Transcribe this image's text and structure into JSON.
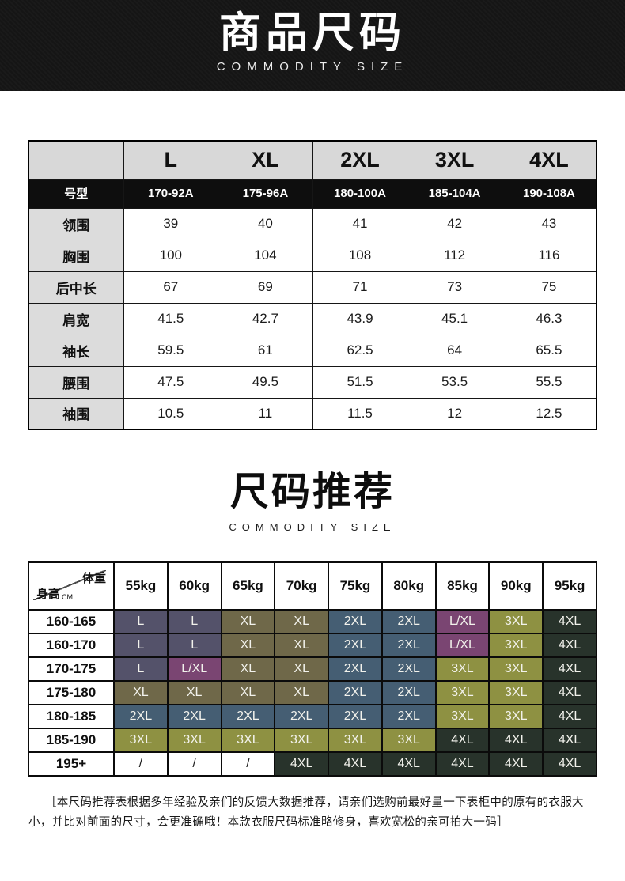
{
  "banner": {
    "title": "商品尺码",
    "subtitle": "COMMODITY SIZE",
    "bg_color": "#151515"
  },
  "spec_table": {
    "size_headers": [
      "L",
      "XL",
      "2XL",
      "3XL",
      "4XL"
    ],
    "model_row": {
      "label": "号型",
      "values": [
        "170-92A",
        "175-96A",
        "180-100A",
        "185-104A",
        "190-108A"
      ]
    },
    "rows": [
      {
        "label": "领围",
        "values": [
          "39",
          "40",
          "41",
          "42",
          "43"
        ]
      },
      {
        "label": "胸围",
        "values": [
          "100",
          "104",
          "108",
          "112",
          "116"
        ]
      },
      {
        "label": "后中长",
        "values": [
          "67",
          "69",
          "71",
          "73",
          "75"
        ]
      },
      {
        "label": "肩宽",
        "values": [
          "41.5",
          "42.7",
          "43.9",
          "45.1",
          "46.3"
        ]
      },
      {
        "label": "袖长",
        "values": [
          "59.5",
          "61",
          "62.5",
          "64",
          "65.5"
        ]
      },
      {
        "label": "腰围",
        "values": [
          "47.5",
          "49.5",
          "51.5",
          "53.5",
          "55.5"
        ]
      },
      {
        "label": "袖围",
        "values": [
          "10.5",
          "11",
          "11.5",
          "12",
          "12.5"
        ]
      }
    ],
    "header_bg": "#d8d8d8",
    "model_row_bg": "#0e0e0e",
    "label_col_bg": "#dcdcdc"
  },
  "recommend": {
    "title": "尺码推荐",
    "subtitle": "COMMODITY SIZE",
    "corner": {
      "top_label": "体重",
      "bottom_label": "身高",
      "unit": "CM"
    },
    "weight_headers": [
      "55kg",
      "60kg",
      "65kg",
      "70kg",
      "75kg",
      "80kg",
      "85kg",
      "90kg",
      "95kg"
    ],
    "rows": [
      {
        "height": "160-165",
        "sizes": [
          "L",
          "L",
          "XL",
          "XL",
          "2XL",
          "2XL",
          "L/XL",
          "3XL",
          "4XL"
        ]
      },
      {
        "height": "160-170",
        "sizes": [
          "L",
          "L",
          "XL",
          "XL",
          "2XL",
          "2XL",
          "L/XL",
          "3XL",
          "4XL"
        ]
      },
      {
        "height": "170-175",
        "sizes": [
          "L",
          "L/XL",
          "XL",
          "XL",
          "2XL",
          "2XL",
          "3XL",
          "3XL",
          "4XL"
        ]
      },
      {
        "height": "175-180",
        "sizes": [
          "XL",
          "XL",
          "XL",
          "XL",
          "2XL",
          "2XL",
          "3XL",
          "3XL",
          "4XL"
        ]
      },
      {
        "height": "180-185",
        "sizes": [
          "2XL",
          "2XL",
          "2XL",
          "2XL",
          "2XL",
          "2XL",
          "3XL",
          "3XL",
          "4XL"
        ]
      },
      {
        "height": "185-190",
        "sizes": [
          "3XL",
          "3XL",
          "3XL",
          "3XL",
          "3XL",
          "3XL",
          "4XL",
          "4XL",
          "4XL"
        ]
      },
      {
        "height": "195+",
        "sizes": [
          "/",
          "/",
          "/",
          "4XL",
          "4XL",
          "4XL",
          "4XL",
          "4XL",
          "4XL"
        ]
      }
    ],
    "size_colors": {
      "L": "#54526a",
      "L/XL": "#7a4572",
      "XL": "#6f6849",
      "2XL": "#455e73",
      "3XL": "#8e9142",
      "4XL": "#28332b",
      "/": "#ffffff"
    },
    "cell_text_color": "#f2f2ec",
    "slash_text_color": "#1c1c1c"
  },
  "footer": {
    "lines": [
      "［本尺码推荐表根据多年经验及亲们的反馈大数据推荐，请亲们选购前最好量一下表柜中的原有的衣服大",
      "小，并比对前面的尺寸，会更准确哦！本款衣服尺码标准略修身，喜欢宽松的亲可拍大一码］"
    ]
  }
}
